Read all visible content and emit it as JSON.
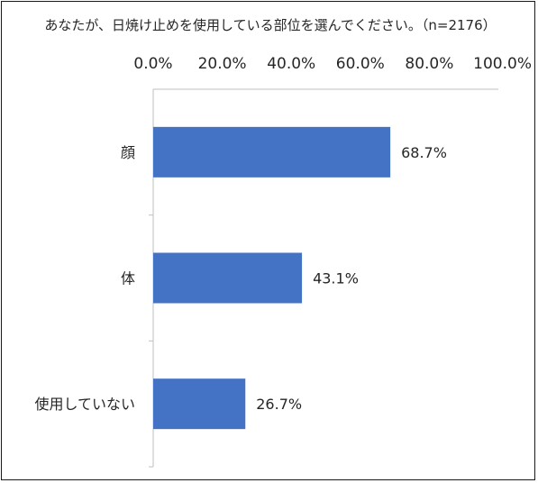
{
  "chart_data": {
    "type": "bar",
    "orientation": "horizontal",
    "title": "あなたが、日焼け止めを使用している部位を選んでください。（n=2176）",
    "categories": [
      "顔",
      "体",
      "使用していない"
    ],
    "values": [
      68.7,
      43.1,
      26.7
    ],
    "data_labels": [
      "68.7%",
      "43.1%",
      "26.7%"
    ],
    "xlim": [
      0,
      100
    ],
    "x_ticks": [
      0,
      20,
      40,
      60,
      80,
      100
    ],
    "x_tick_labels": [
      "0.0%",
      "20.0%",
      "40.0%",
      "60.0%",
      "80.0%",
      "100.0%"
    ],
    "x_axis_position": "top",
    "bar_color": "#4472c4",
    "grid": false,
    "legend": "none"
  }
}
